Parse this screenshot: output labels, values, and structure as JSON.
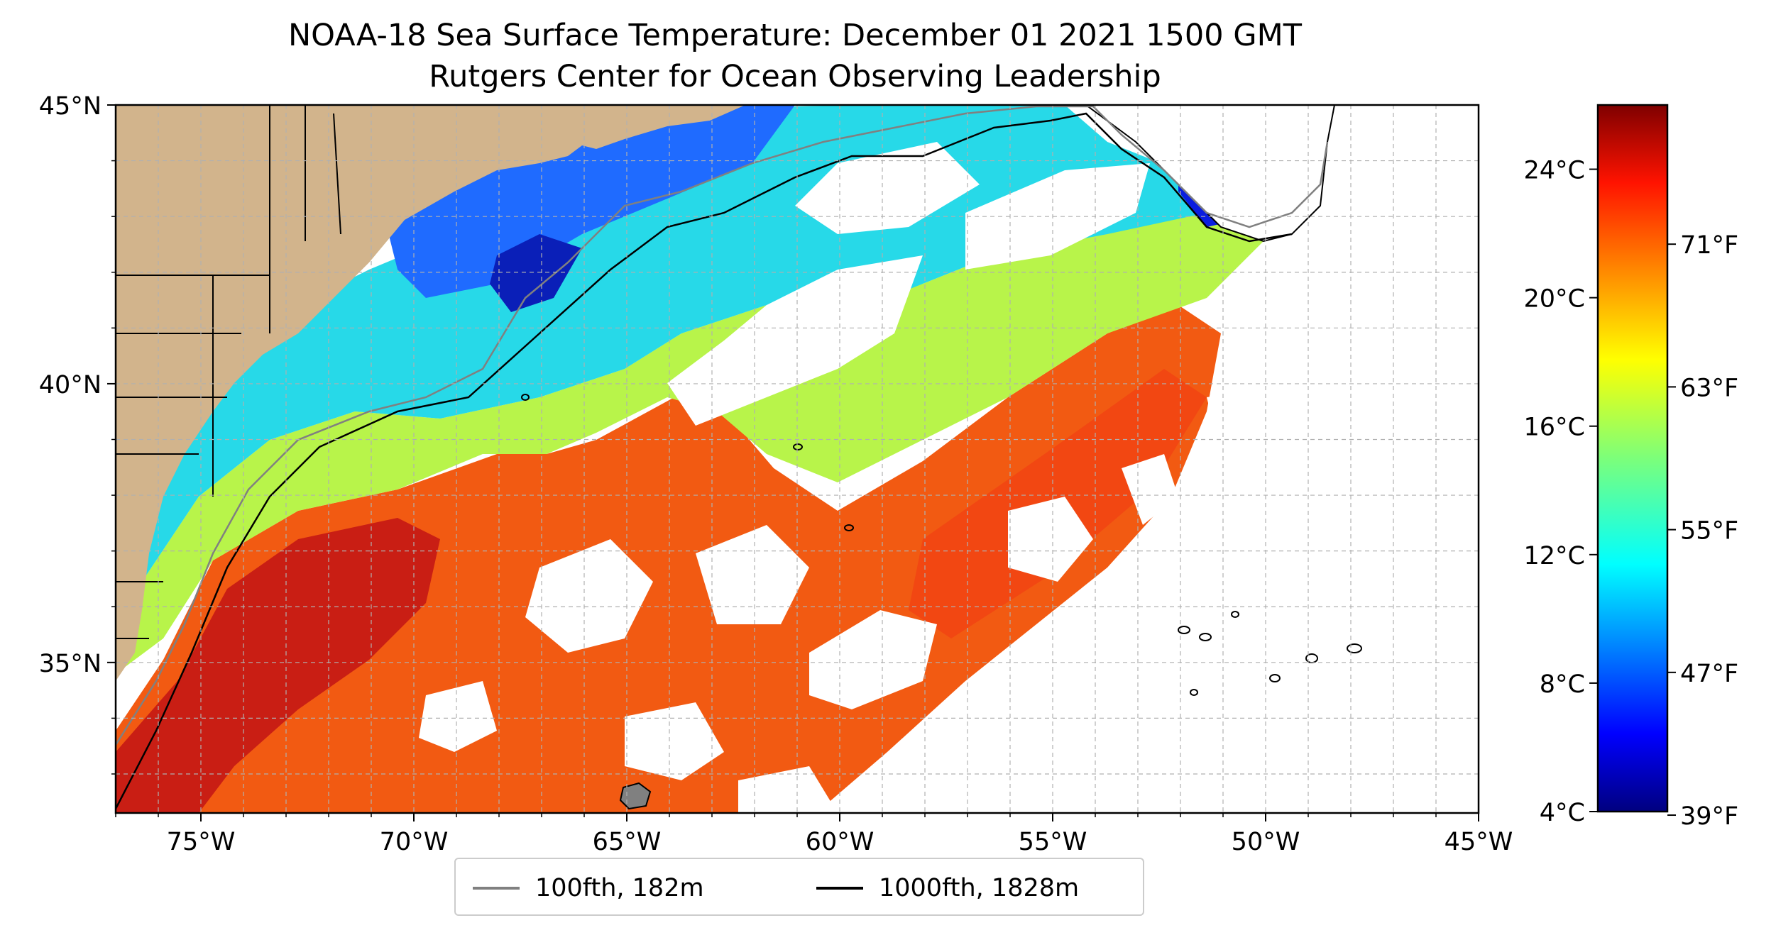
{
  "title": {
    "line1": "NOAA-18 Sea Surface Temperature: December 01 2021 1500 GMT",
    "line2": "Rutgers Center for Ocean Observing Leadership"
  },
  "map": {
    "lon_range": [
      -77,
      -45
    ],
    "lat_range": [
      32.3,
      45
    ],
    "lat_ticks": [
      {
        "value": 45,
        "label": "45°N"
      },
      {
        "value": 40,
        "label": "40°N"
      },
      {
        "value": 35,
        "label": "35°N"
      }
    ],
    "lon_ticks": [
      {
        "value": -75,
        "label": "75°W"
      },
      {
        "value": -70,
        "label": "70°W"
      },
      {
        "value": -65,
        "label": "65°W"
      },
      {
        "value": -60,
        "label": "60°W"
      },
      {
        "value": -55,
        "label": "55°W"
      },
      {
        "value": -50,
        "label": "50°W"
      },
      {
        "value": -45,
        "label": "45°W"
      }
    ],
    "grid": true,
    "land_color": "#d2b48c",
    "cloud_color": "#ffffff"
  },
  "colorbar": {
    "colormap": "jet",
    "range_c": [
      4,
      26
    ],
    "celsius_ticks": [
      {
        "value": 4,
        "label": "4°C"
      },
      {
        "value": 8,
        "label": "8°C"
      },
      {
        "value": 12,
        "label": "12°C"
      },
      {
        "value": 16,
        "label": "16°C"
      },
      {
        "value": 20,
        "label": "20°C"
      },
      {
        "value": 24,
        "label": "24°C"
      }
    ],
    "fahrenheit_ticks": [
      {
        "value": 39,
        "label": "39°F"
      },
      {
        "value": 47,
        "label": "47°F"
      },
      {
        "value": 55,
        "label": "55°F"
      },
      {
        "value": 63,
        "label": "63°F"
      },
      {
        "value": 71,
        "label": "71°F"
      }
    ]
  },
  "legend": {
    "items": [
      {
        "label": "100fth, 182m",
        "color": "#808080"
      },
      {
        "label": "1000fth, 1828m",
        "color": "#000000"
      }
    ]
  }
}
